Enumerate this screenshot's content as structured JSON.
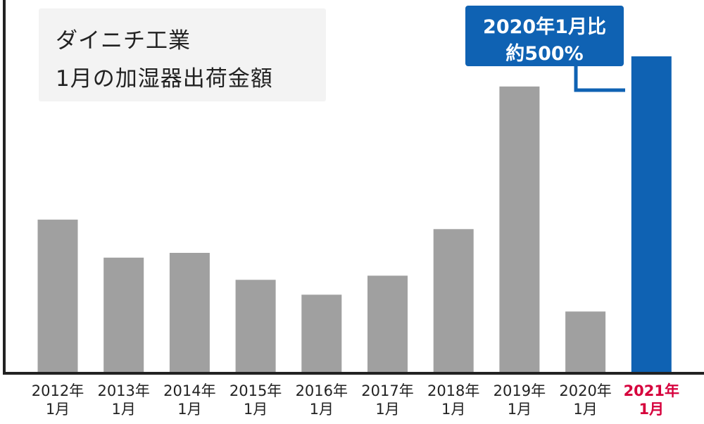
{
  "title": {
    "line1": "ダイニチ工業",
    "line2": "1月の加湿器出荷金額"
  },
  "callout": {
    "line1": "2020年1月比",
    "line2": "約500%"
  },
  "colors": {
    "bar": "#a0a0a0",
    "highlight_bar": "#0f62b3",
    "highlight_label": "#d6003c",
    "axis": "#222222",
    "callout_bg": "#0f62b3"
  },
  "chart_data": {
    "type": "bar",
    "title": "ダイニチ工業 1月の加湿器出荷金額",
    "xlabel": "",
    "ylabel": "",
    "ylim": [
      0,
      100
    ],
    "grid": false,
    "categories": [
      {
        "year": "2012年",
        "month": "1月"
      },
      {
        "year": "2013年",
        "month": "1月"
      },
      {
        "year": "2014年",
        "month": "1月"
      },
      {
        "year": "2015年",
        "month": "1月"
      },
      {
        "year": "2016年",
        "month": "1月"
      },
      {
        "year": "2017年",
        "month": "1月"
      },
      {
        "year": "2018年",
        "month": "1月"
      },
      {
        "year": "2019年",
        "month": "1月"
      },
      {
        "year": "2020年",
        "month": "1月"
      },
      {
        "year": "2021年",
        "month": "1月"
      }
    ],
    "values": [
      48.5,
      36.5,
      38,
      29.5,
      24.8,
      30.8,
      45.5,
      90.5,
      19.5,
      100
    ],
    "highlight_index": 9,
    "annotation": "2020年1月比 約500%"
  }
}
